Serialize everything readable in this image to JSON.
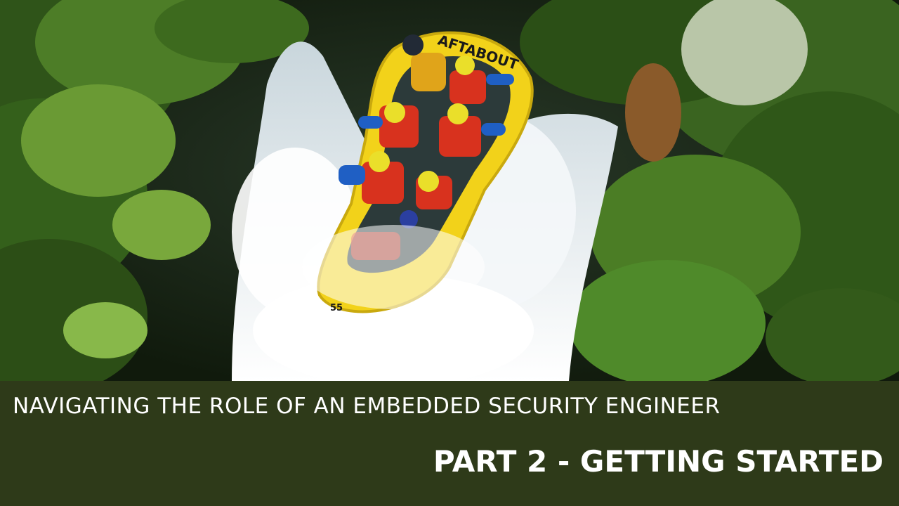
{
  "photo": {
    "scene": "whitewater rafting crew on yellow raft descending waterfall surrounded by ferns",
    "raft_brand_text": "AFTABOUT",
    "raft_number_text": "55",
    "colors": {
      "raft": "#f2d21a",
      "water": "#eef3f6",
      "foliage": "#3f6a22",
      "life_jacket": "#d8321e",
      "helmet": "#eadf2a"
    }
  },
  "banner": {
    "subtitle": "NAVIGATING THE ROLE OF AN EMBEDDED SECURITY ENGINEER",
    "title": "PART 2 - GETTING STARTED",
    "background": "#2e3a19",
    "text_color": "#ffffff"
  }
}
